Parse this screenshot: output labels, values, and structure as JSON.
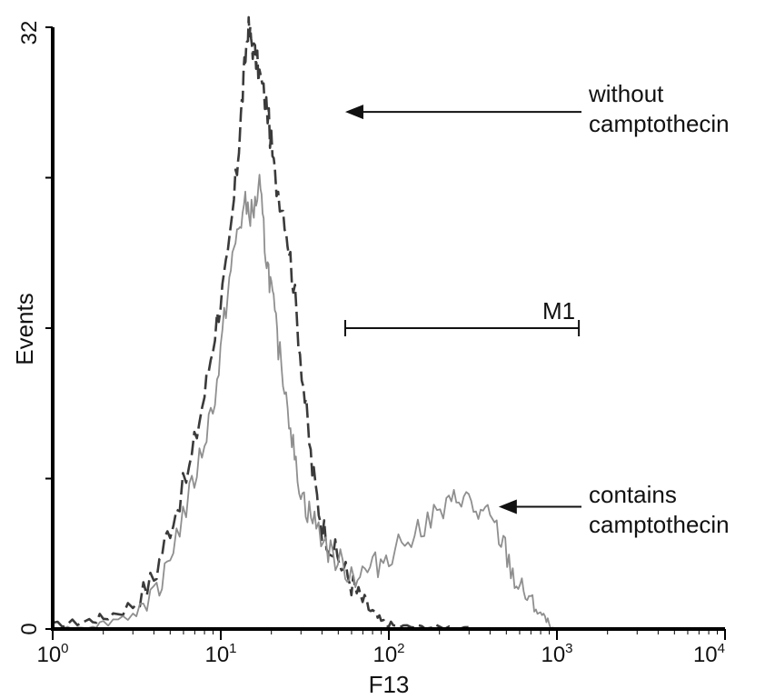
{
  "chart_data": {
    "type": "line",
    "x_scale": "log",
    "xlim": [
      1,
      10000
    ],
    "ylim": [
      0,
      32
    ],
    "xlabel": "F13",
    "ylabel": "Events",
    "x_ticks": [
      {
        "base": "10",
        "exp": "0"
      },
      {
        "base": "10",
        "exp": "1"
      },
      {
        "base": "10",
        "exp": "2"
      },
      {
        "base": "10",
        "exp": "3"
      },
      {
        "base": "10",
        "exp": "4"
      }
    ],
    "y_tick_labels": [
      "0",
      "32"
    ],
    "y_minor_ticks": [
      8,
      16,
      24
    ],
    "grid": false,
    "series": [
      {
        "key": "without",
        "color": "#3a3a3a",
        "dash": true,
        "x": [
          1.0,
          1.5,
          2.0,
          3.0,
          4.0,
          5.0,
          6.5,
          8.0,
          9.5,
          11.0,
          12.5,
          13.5,
          14.5,
          15.5,
          17.0,
          19.0,
          21.0,
          24.0,
          27.0,
          31.0,
          35.0,
          40.0,
          48.0,
          57.0,
          66.0,
          78.0,
          90.0,
          110.0,
          150.0,
          200.0,
          300.0
        ],
        "y": [
          0.2,
          0.4,
          0.6,
          1.3,
          2.7,
          5.5,
          8.5,
          12.5,
          16.5,
          19.5,
          24.5,
          28.5,
          32.0,
          31.0,
          29.5,
          27.5,
          24.0,
          22.0,
          18.5,
          13.0,
          8.5,
          5.5,
          4.0,
          2.8,
          1.8,
          1.0,
          0.4,
          0.15,
          0.1,
          0.1,
          0.1
        ]
      },
      {
        "key": "with",
        "color": "#8f8f8f",
        "dash": false,
        "x": [
          1.0,
          1.5,
          2.0,
          3.0,
          4.0,
          5.0,
          6.5,
          8.0,
          9.5,
          11.0,
          12.5,
          14.0,
          15.5,
          17.0,
          18.5,
          20.0,
          22.0,
          25.0,
          28.0,
          32.0,
          37.0,
          45.0,
          55.0,
          65.0,
          80.0,
          100.0,
          130.0,
          170.0,
          220.0,
          270.0,
          330.0,
          400.0,
          480.0,
          560.0,
          650.0,
          750.0,
          850.0,
          950.0
        ],
        "y": [
          0.0,
          0.1,
          0.3,
          0.8,
          1.8,
          4.0,
          7.0,
          10.0,
          13.0,
          18.0,
          21.0,
          22.5,
          22.0,
          23.5,
          20.0,
          18.0,
          15.0,
          12.0,
          8.5,
          6.5,
          5.5,
          4.0,
          3.2,
          2.8,
          3.2,
          4.0,
          5.0,
          5.8,
          6.3,
          7.2,
          6.2,
          5.8,
          4.5,
          2.6,
          1.8,
          1.1,
          0.5,
          0.1
        ]
      }
    ],
    "annotations": [
      {
        "key": "without",
        "lines": [
          "without",
          "camptothecin"
        ],
        "arrow_to": {
          "x": 55,
          "y": 27.5
        }
      },
      {
        "key": "with",
        "lines": [
          "contains",
          "camptothecin"
        ],
        "arrow_to": {
          "x": 450,
          "y": 6.5
        }
      }
    ],
    "marker": {
      "label": "M1",
      "x_start": 55,
      "x_end": 1350,
      "y": 16
    }
  }
}
